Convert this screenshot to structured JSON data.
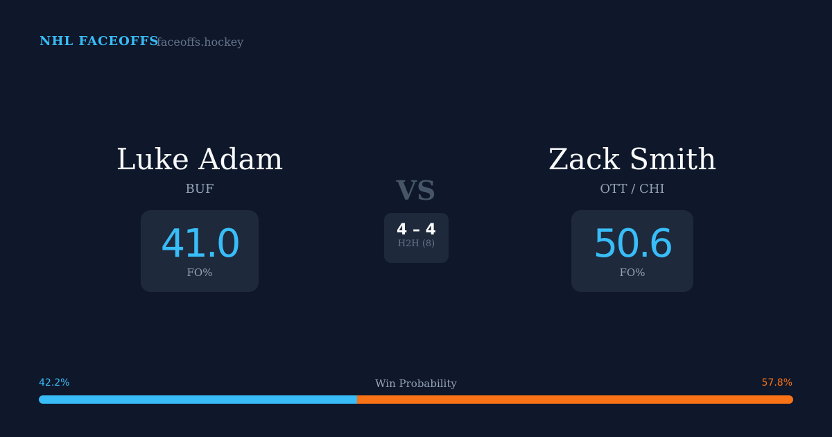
{
  "header": {
    "brand": "NHL FACEOFFS",
    "site": "faceoffs.hockey"
  },
  "player1": {
    "name": "Luke Adam",
    "team": "BUF",
    "fo_pct": "41.0",
    "fo_label": "FO%"
  },
  "player2": {
    "name": "Zack Smith",
    "team": "OTT / CHI",
    "fo_pct": "50.6",
    "fo_label": "FO%"
  },
  "vs": "VS",
  "h2h": {
    "score": "4 – 4",
    "label": "H2H (8)"
  },
  "win_probability": {
    "label": "Win Probability",
    "p1_text": "42.2%",
    "p2_text": "57.8%",
    "p1_value": 42.2,
    "p2_value": 57.8,
    "p1_color": "#38bdf8",
    "p2_color": "#f97316"
  }
}
